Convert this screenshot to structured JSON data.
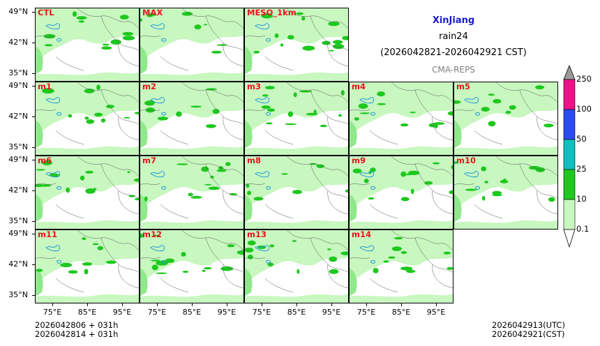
{
  "header": {
    "region": "XinJiang",
    "variable": "rain24",
    "period": "(2026042821-2026042921 CST)",
    "model": "CMA-REPS"
  },
  "panels": [
    "CTL",
    "MAX",
    "MESO_1km",
    "m1",
    "m2",
    "m3",
    "m4",
    "m5",
    "m6",
    "m7",
    "m8",
    "m9",
    "m10",
    "m11",
    "m12",
    "m13",
    "m14"
  ],
  "lat_labels": [
    "49°N",
    "42°N",
    "35°N"
  ],
  "lon_labels": [
    "75°E",
    "85°E",
    "95°E"
  ],
  "footer": {
    "init_utc": "2026042806  +  031h",
    "init_cst": "2026042814  +  031h",
    "valid_utc": "2026042913(UTC)",
    "valid_cst": "2026042921(CST)"
  },
  "colorbar": {
    "levels": [
      "0.1",
      "10",
      "25",
      "50",
      "100",
      "250"
    ],
    "colors": [
      "#c8f7c0",
      "#1ec81e",
      "#10bfbf",
      "#2b4cf2",
      "#ef1186",
      "#9a9a9a"
    ]
  },
  "colors": {
    "light_green": "#c8f7c0",
    "mid_green": "#8fe98a",
    "green": "#1ec81e",
    "panel_label": "#e8141e",
    "region_title": "#1a1ad2",
    "model": "#808080",
    "lake": "#1e9ad6"
  }
}
